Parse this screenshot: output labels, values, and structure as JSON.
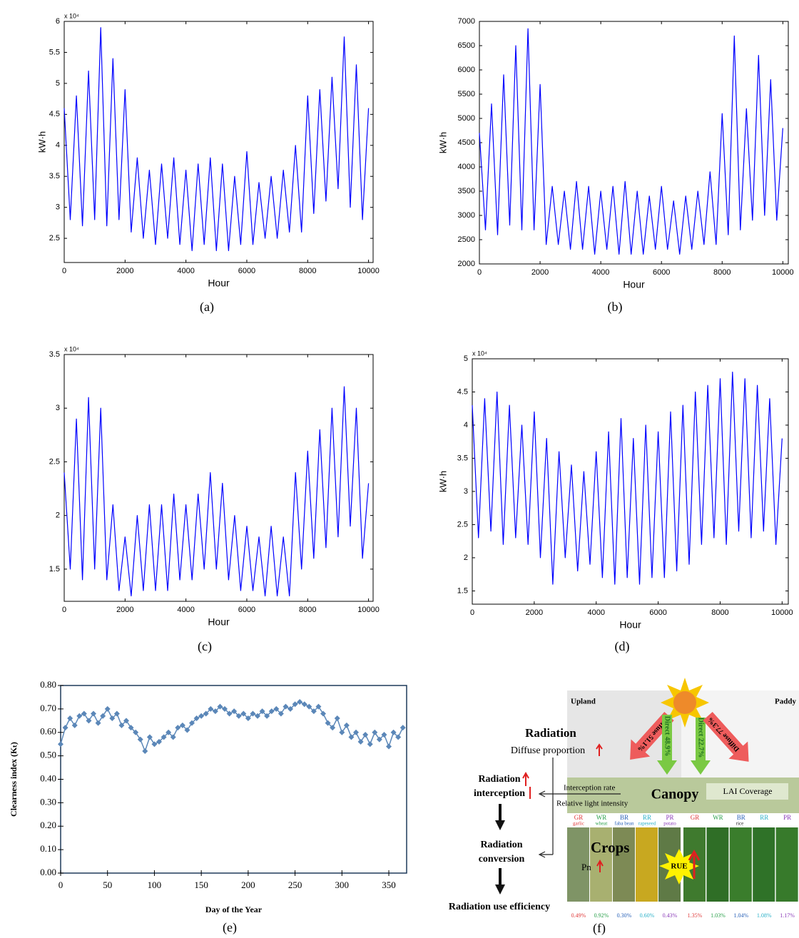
{
  "chart_data": [
    {
      "type": "line",
      "caption": "(a)",
      "y_label": "kW·h",
      "x_label": "Hour",
      "multiplier": "x 10⁴",
      "color": "#0000ff",
      "xlim": [
        0,
        10150
      ],
      "xticks": [
        0,
        2000,
        4000,
        6000,
        8000,
        10000
      ],
      "ylim": [
        2.11,
        6
      ],
      "yticks": [
        2.5,
        3,
        3.5,
        4,
        4.5,
        5,
        5.5,
        6
      ],
      "x": [
        0,
        200,
        400,
        600,
        800,
        1000,
        1200,
        1400,
        1600,
        1800,
        2000,
        2200,
        2400,
        2600,
        2800,
        3000,
        3200,
        3400,
        3600,
        3800,
        4000,
        4200,
        4400,
        4600,
        4800,
        5000,
        5200,
        5400,
        5600,
        5800,
        6000,
        6200,
        6400,
        6600,
        6800,
        7000,
        7200,
        7400,
        7600,
        7800,
        8000,
        8200,
        8400,
        8600,
        8800,
        9000,
        9200,
        9400,
        9600,
        9800,
        10000
      ],
      "values": [
        4.6,
        2.8,
        4.8,
        2.7,
        5.2,
        2.8,
        5.9,
        2.7,
        5.4,
        2.8,
        4.9,
        2.6,
        3.8,
        2.5,
        3.6,
        2.4,
        3.7,
        2.5,
        3.8,
        2.4,
        3.6,
        2.3,
        3.7,
        2.4,
        3.8,
        2.3,
        3.7,
        2.3,
        3.5,
        2.4,
        3.9,
        2.4,
        3.4,
        2.5,
        3.5,
        2.5,
        3.6,
        2.6,
        4.0,
        2.6,
        4.8,
        2.9,
        4.9,
        3.1,
        5.1,
        3.3,
        5.75,
        3.0,
        5.3,
        2.8,
        4.6
      ]
    },
    {
      "type": "line",
      "caption": "(b)",
      "y_label": "kW·h",
      "x_label": "Hour",
      "color": "#0000ff",
      "xlim": [
        0,
        10180
      ],
      "xticks": [
        0,
        2000,
        4000,
        6000,
        8000,
        10000
      ],
      "ylim": [
        2000,
        7000
      ],
      "yticks": [
        2000,
        2500,
        3000,
        3500,
        4000,
        4500,
        5000,
        5500,
        6000,
        6500,
        7000
      ],
      "x": [
        0,
        200,
        400,
        600,
        800,
        1000,
        1200,
        1400,
        1600,
        1800,
        2000,
        2200,
        2400,
        2600,
        2800,
        3000,
        3200,
        3400,
        3600,
        3800,
        4000,
        4200,
        4400,
        4600,
        4800,
        5000,
        5200,
        5400,
        5600,
        5800,
        6000,
        6200,
        6400,
        6600,
        6800,
        7000,
        7200,
        7400,
        7600,
        7800,
        8000,
        8200,
        8400,
        8600,
        8800,
        9000,
        9200,
        9400,
        9600,
        9800,
        10000
      ],
      "values": [
        4700,
        2700,
        5300,
        2600,
        5900,
        2800,
        6500,
        2700,
        6850,
        2700,
        5700,
        2400,
        3600,
        2400,
        3500,
        2300,
        3700,
        2300,
        3600,
        2200,
        3500,
        2300,
        3600,
        2200,
        3700,
        2200,
        3500,
        2200,
        3400,
        2300,
        3600,
        2300,
        3300,
        2200,
        3400,
        2300,
        3500,
        2400,
        3900,
        2400,
        5100,
        2600,
        6700,
        2700,
        5200,
        2900,
        6300,
        3000,
        5800,
        2900,
        4800
      ]
    },
    {
      "type": "line",
      "caption": "(c)",
      "x_label": "Hour",
      "multiplier": "x 10⁴",
      "color": "#0000ff",
      "xlim": [
        0,
        10150
      ],
      "xticks": [
        0,
        2000,
        4000,
        6000,
        8000,
        10000
      ],
      "ylim": [
        1.2,
        3.5
      ],
      "yticks": [
        1.5,
        2,
        2.5,
        3,
        3.5
      ],
      "x": [
        0,
        200,
        400,
        600,
        800,
        1000,
        1200,
        1400,
        1600,
        1800,
        2000,
        2200,
        2400,
        2600,
        2800,
        3000,
        3200,
        3400,
        3600,
        3800,
        4000,
        4200,
        4400,
        4600,
        4800,
        5000,
        5200,
        5400,
        5600,
        5800,
        6000,
        6200,
        6400,
        6600,
        6800,
        7000,
        7200,
        7400,
        7600,
        7800,
        8000,
        8200,
        8400,
        8600,
        8800,
        9000,
        9200,
        9400,
        9600,
        9800,
        10000
      ],
      "values": [
        2.4,
        1.5,
        2.9,
        1.4,
        3.1,
        1.5,
        3.0,
        1.4,
        2.1,
        1.3,
        1.8,
        1.25,
        2.0,
        1.3,
        2.1,
        1.3,
        2.1,
        1.3,
        2.2,
        1.4,
        2.1,
        1.4,
        2.2,
        1.5,
        2.4,
        1.5,
        2.3,
        1.4,
        2.0,
        1.3,
        1.9,
        1.3,
        1.8,
        1.25,
        1.9,
        1.25,
        1.8,
        1.25,
        2.4,
        1.5,
        2.6,
        1.6,
        2.8,
        1.7,
        3.0,
        1.8,
        3.2,
        1.9,
        3.0,
        1.6,
        2.3
      ]
    },
    {
      "type": "line",
      "caption": "(d)",
      "y_label": "kW·h",
      "x_label": "Hour",
      "multiplier": "x 10⁴",
      "color": "#0000ff",
      "xlim": [
        0,
        10200
      ],
      "xticks": [
        0,
        2000,
        4000,
        6000,
        8000,
        10000
      ],
      "ylim": [
        1.3,
        5
      ],
      "yticks": [
        1.5,
        2,
        2.5,
        3,
        3.5,
        4,
        4.5,
        5
      ],
      "x": [
        0,
        200,
        400,
        600,
        800,
        1000,
        1200,
        1400,
        1600,
        1800,
        2000,
        2200,
        2400,
        2600,
        2800,
        3000,
        3200,
        3400,
        3600,
        3800,
        4000,
        4200,
        4400,
        4600,
        4800,
        5000,
        5200,
        5400,
        5600,
        5800,
        6000,
        6200,
        6400,
        6600,
        6800,
        7000,
        7200,
        7400,
        7600,
        7800,
        8000,
        8200,
        8400,
        8600,
        8800,
        9000,
        9200,
        9400,
        9600,
        9800,
        10000
      ],
      "values": [
        4.3,
        2.3,
        4.4,
        2.4,
        4.5,
        2.2,
        4.3,
        2.3,
        4.0,
        2.2,
        4.2,
        2.0,
        3.8,
        1.6,
        3.6,
        2.0,
        3.4,
        1.8,
        3.3,
        1.9,
        3.6,
        1.7,
        3.9,
        1.6,
        4.1,
        1.7,
        3.8,
        1.6,
        4.0,
        1.7,
        3.9,
        1.7,
        4.2,
        1.8,
        4.3,
        1.9,
        4.5,
        2.2,
        4.6,
        2.3,
        4.7,
        2.2,
        4.8,
        2.4,
        4.7,
        2.3,
        4.6,
        2.4,
        4.4,
        2.2,
        3.8
      ]
    },
    {
      "type": "line",
      "caption": "(e)",
      "y_label": "Clearness index (Kₜ)",
      "x_label": "Day of the Year",
      "color": "#5b87b8",
      "marker": "diamond",
      "xlim": [
        0,
        369
      ],
      "xticks": [
        0,
        50,
        100,
        150,
        200,
        250,
        300,
        350
      ],
      "ylim": [
        0,
        0.8
      ],
      "yticks": [
        {
          "value": 0,
          "label": "0.00"
        },
        {
          "value": 0.1,
          "label": "0.10"
        },
        {
          "value": 0.2,
          "label": "0.20"
        },
        {
          "value": 0.3,
          "label": "0.30"
        },
        {
          "value": 0.4,
          "label": "0.40"
        },
        {
          "value": 0.5,
          "label": "0.50"
        },
        {
          "value": 0.6,
          "label": "0.60"
        },
        {
          "value": 0.7,
          "label": "0.70"
        },
        {
          "value": 0.8,
          "label": "0.80"
        }
      ],
      "x": [
        0,
        5,
        10,
        15,
        20,
        25,
        30,
        35,
        40,
        45,
        50,
        55,
        60,
        65,
        70,
        75,
        80,
        85,
        90,
        95,
        100,
        105,
        110,
        115,
        120,
        125,
        130,
        135,
        140,
        145,
        150,
        155,
        160,
        165,
        170,
        175,
        180,
        185,
        190,
        195,
        200,
        205,
        210,
        215,
        220,
        225,
        230,
        235,
        240,
        245,
        250,
        255,
        260,
        265,
        270,
        275,
        280,
        285,
        290,
        295,
        300,
        305,
        310,
        315,
        320,
        325,
        330,
        335,
        340,
        345,
        350,
        355,
        360,
        365
      ],
      "values": [
        0.55,
        0.62,
        0.66,
        0.63,
        0.67,
        0.68,
        0.65,
        0.68,
        0.64,
        0.67,
        0.7,
        0.66,
        0.68,
        0.63,
        0.65,
        0.62,
        0.6,
        0.57,
        0.52,
        0.58,
        0.55,
        0.56,
        0.58,
        0.6,
        0.58,
        0.62,
        0.63,
        0.61,
        0.64,
        0.66,
        0.67,
        0.68,
        0.7,
        0.69,
        0.71,
        0.7,
        0.68,
        0.69,
        0.67,
        0.68,
        0.66,
        0.68,
        0.67,
        0.69,
        0.67,
        0.69,
        0.7,
        0.68,
        0.71,
        0.7,
        0.72,
        0.73,
        0.72,
        0.71,
        0.69,
        0.71,
        0.68,
        0.64,
        0.62,
        0.66,
        0.6,
        0.63,
        0.58,
        0.6,
        0.56,
        0.59,
        0.55,
        0.6,
        0.57,
        0.59,
        0.54,
        0.6,
        0.58,
        0.62
      ]
    }
  ],
  "diagram": {
    "caption": "(f)",
    "upland": "Upland",
    "paddy": "Paddy",
    "radiation": "Radiation",
    "diffuse_proportion": "Diffuse proportion",
    "interception": [
      "Radiation",
      "interception"
    ],
    "conversion": [
      "Radiation",
      "conversion"
    ],
    "rue_title": "Radiation use efficiency",
    "arrows": [
      "Diffuse 51.1%",
      "Direct 48.9%",
      "Direct 22.7%",
      "Diffuse 77.3%"
    ],
    "interception_rate": "Interception rate",
    "relative_light": "Relative light intensity",
    "canopy": "Canopy",
    "lai": "LAI  Coverage",
    "crops": "Crops",
    "pn": "Pn",
    "rue": "RUE",
    "crop_codes": [
      "GR",
      "WR",
      "BR",
      "RR",
      "PR",
      "GR",
      "WR",
      "BR",
      "RR",
      "PR"
    ],
    "crop_names": [
      "garlic",
      "wheat",
      "faba bean",
      "rapeseed",
      "potato",
      "rice"
    ],
    "efficiencies": [
      "0.49%",
      "0.92%",
      "0.30%",
      "0.60%",
      "0.43%",
      "1.35%",
      "1.03%",
      "1.04%",
      "1.08%",
      "1.17%"
    ]
  }
}
